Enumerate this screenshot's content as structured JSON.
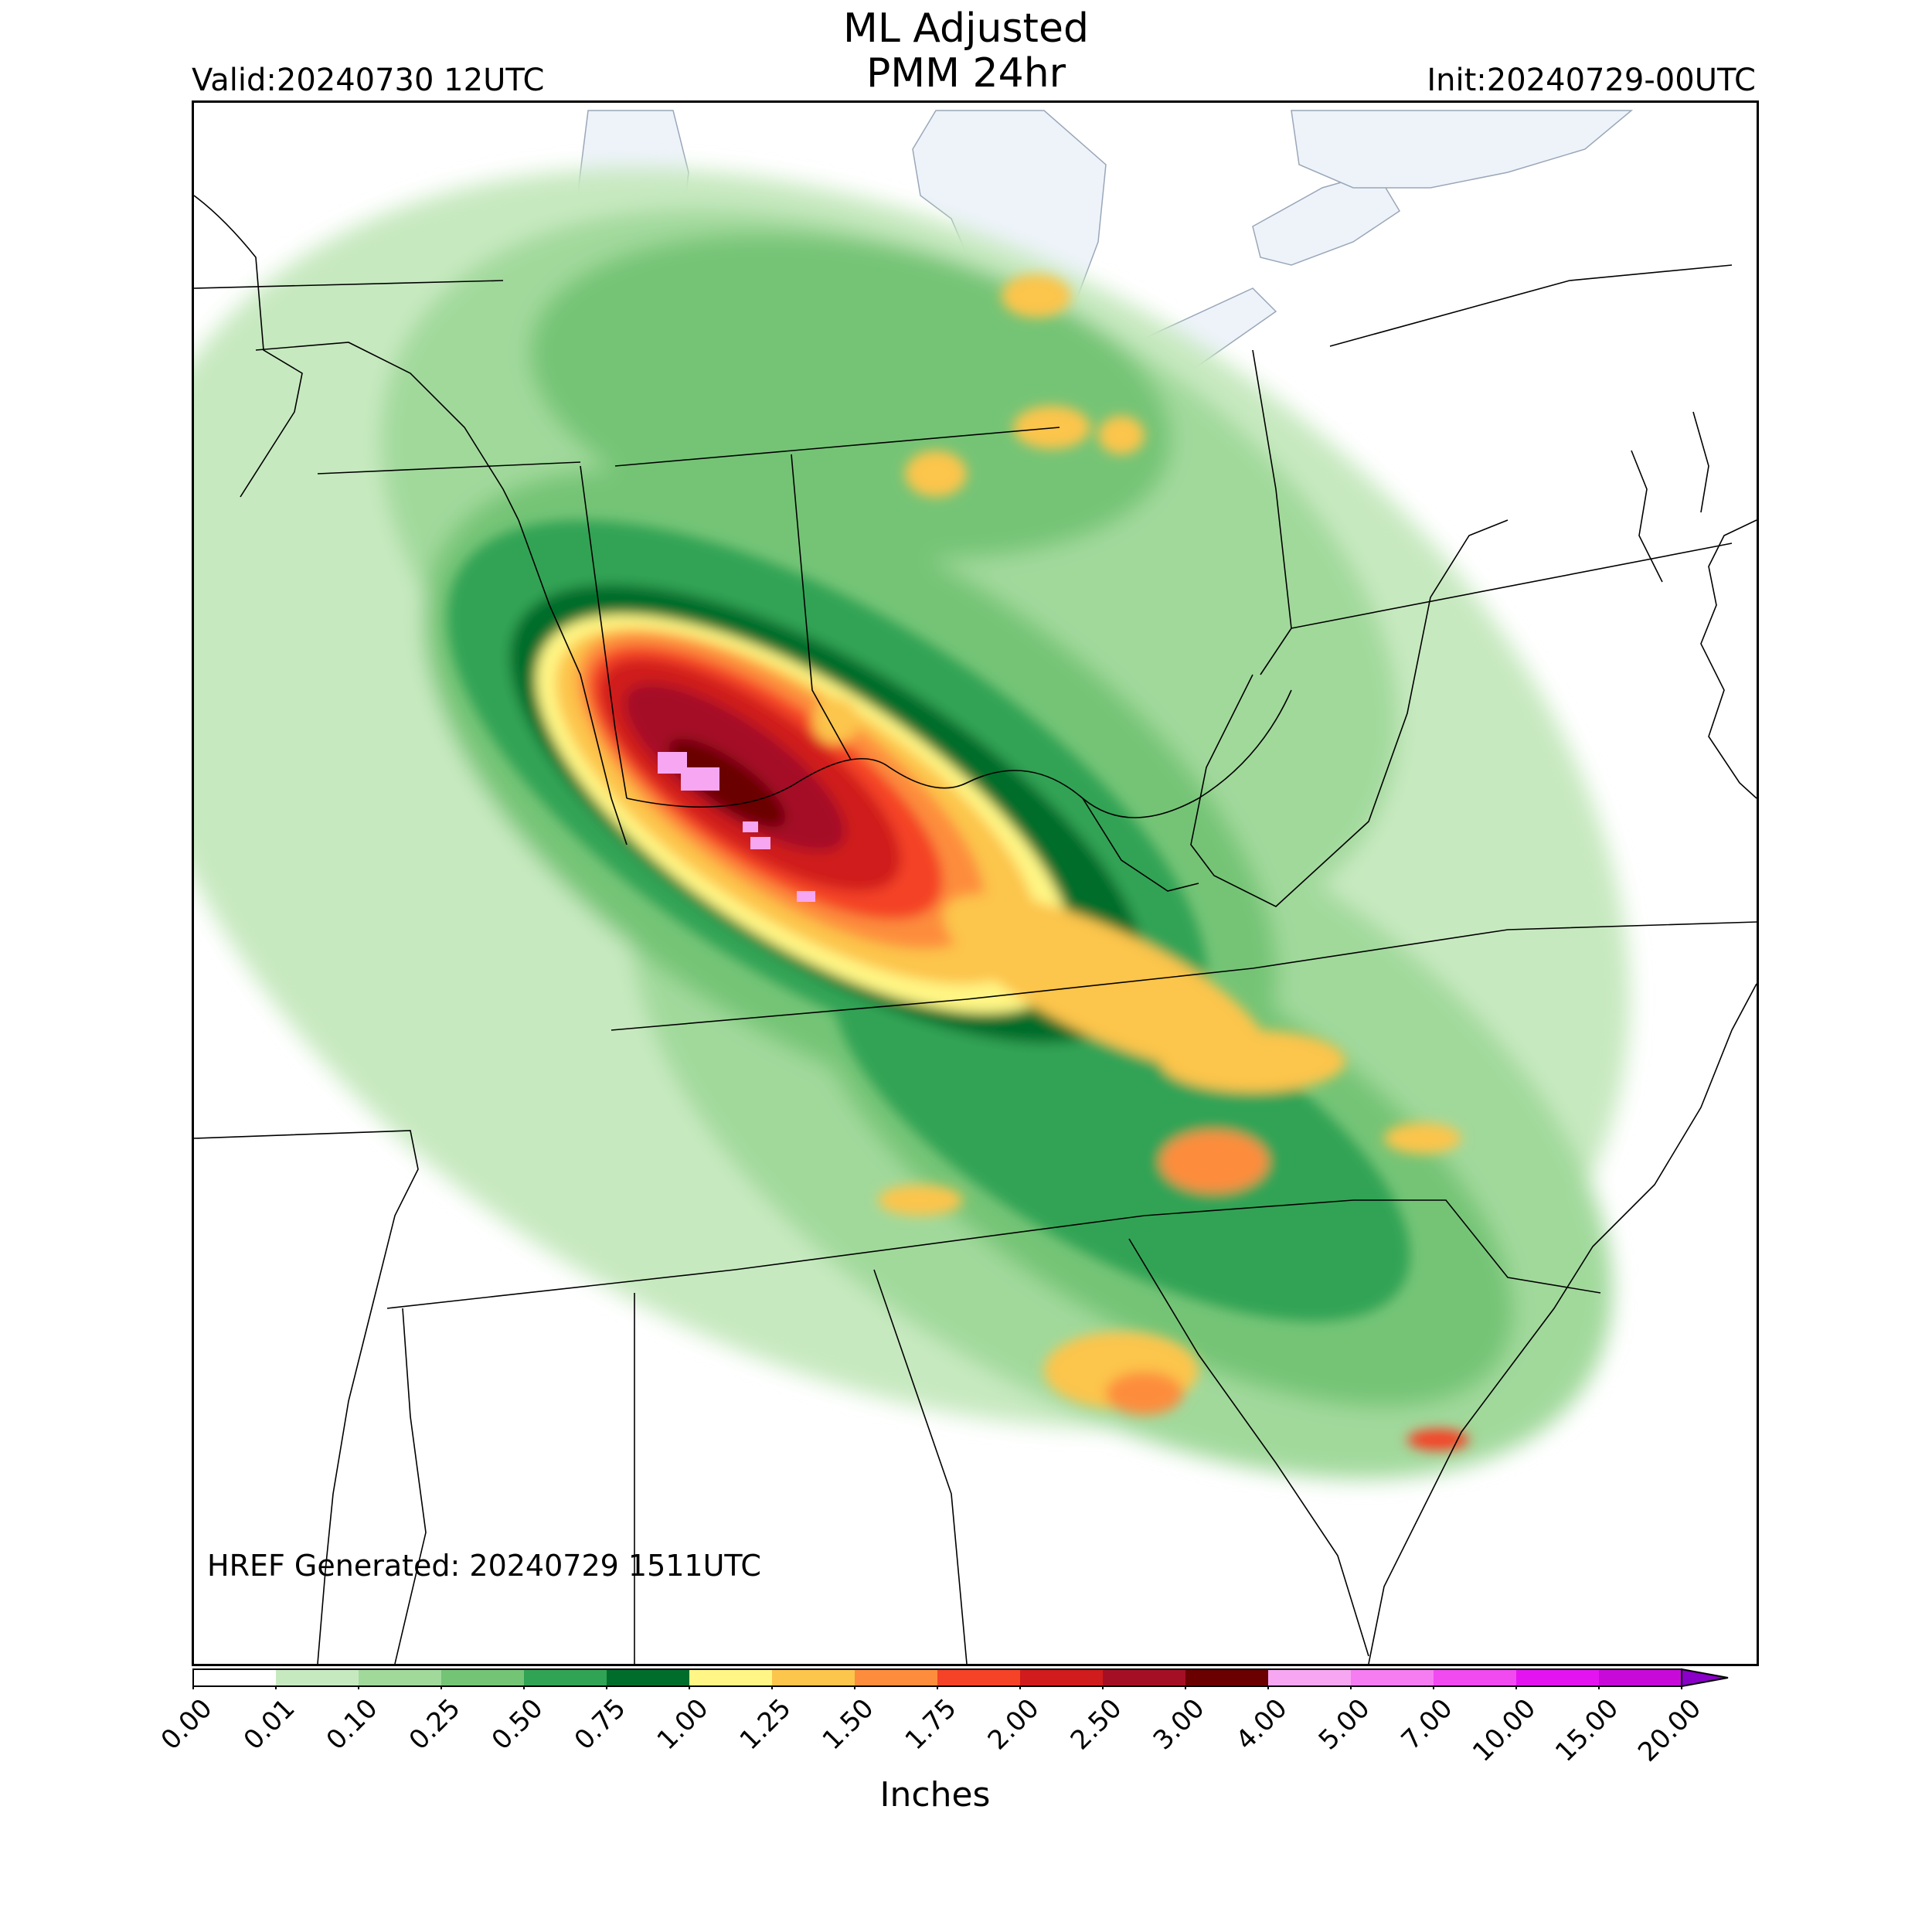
{
  "header": {
    "title_line1": "ML Adjusted",
    "title_line2": "PMM 24hr",
    "valid": "Valid:20240730 12UTC",
    "init": "Init:20240729-00UTC"
  },
  "credit": "HREF Generated: 20240729 1511UTC",
  "colorbar": {
    "label": "Inches",
    "ticks": [
      "0.00",
      "0.01",
      "0.10",
      "0.25",
      "0.50",
      "0.75",
      "1.00",
      "1.25",
      "1.50",
      "1.75",
      "2.00",
      "2.50",
      "3.00",
      "4.00",
      "5.00",
      "7.00",
      "10.00",
      "15.00",
      "20.00"
    ],
    "colors": [
      "#ffffff",
      "#c7e9c0",
      "#a1d99b",
      "#74c476",
      "#31a354",
      "#006d2c",
      "#fff685",
      "#fcc54b",
      "#fd8d3c",
      "#f44327",
      "#d01c1c",
      "#a50f25",
      "#6b0000",
      "#f7a6f2",
      "#f67cf1",
      "#f04af0",
      "#e414f0",
      "#c80ad8",
      "#8a00c8"
    ],
    "extend": "max"
  },
  "map": {
    "water_color": "#eef3fa",
    "border_color": "#000000"
  }
}
